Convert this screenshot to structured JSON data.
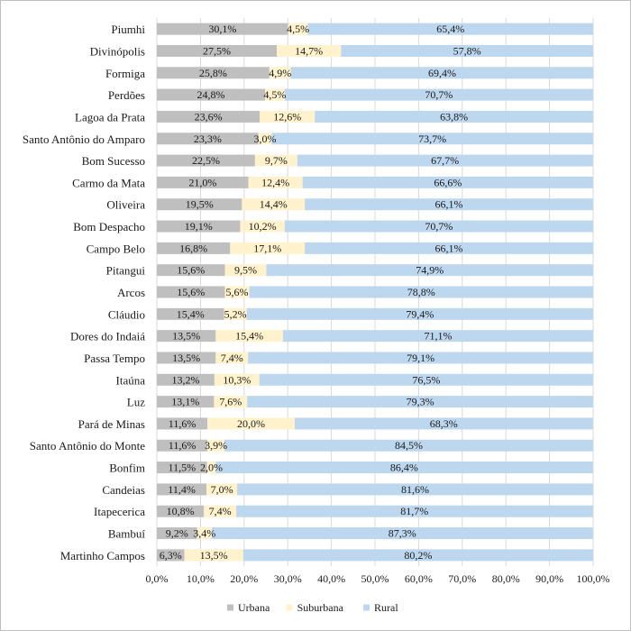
{
  "chart_data": {
    "type": "bar",
    "orientation": "horizontal",
    "stacked": true,
    "categories": [
      "Piumhi",
      "Divinópolis",
      "Formiga",
      "Perdões",
      "Lagoa da Prata",
      "Santo Antônio do Amparo",
      "Bom Sucesso",
      "Carmo da Mata",
      "Oliveira",
      "Bom Despacho",
      "Campo Belo",
      "Pitangui",
      "Arcos",
      "Cláudio",
      "Dores do Indaiá",
      "Passa Tempo",
      "Itaúna",
      "Luz",
      "Pará de Minas",
      "Santo Antônio do Monte",
      "Bonfim",
      "Candeias",
      "Itapecerica",
      "Bambuí",
      "Martinho Campos"
    ],
    "series": [
      {
        "name": "Urbana",
        "color": "#bfbfbf",
        "values": [
          30.1,
          27.5,
          25.8,
          24.8,
          23.6,
          23.3,
          22.5,
          21.0,
          19.5,
          19.1,
          16.8,
          15.6,
          15.6,
          15.4,
          13.5,
          13.5,
          13.2,
          13.1,
          11.6,
          11.6,
          11.5,
          11.4,
          10.8,
          9.2,
          6.3
        ],
        "labels": [
          "30,1%",
          "27,5%",
          "25,8%",
          "24,8%",
          "23,6%",
          "23,3%",
          "22,5%",
          "21,0%",
          "19,5%",
          "19,1%",
          "16,8%",
          "15,6%",
          "15,6%",
          "15,4%",
          "13,5%",
          "13,5%",
          "13,2%",
          "13,1%",
          "11,6%",
          "11,6%",
          "11,5%",
          "11,4%",
          "10,8%",
          "9,2%",
          "6,3%"
        ]
      },
      {
        "name": "Suburbana",
        "color": "#fff2cc",
        "values": [
          4.5,
          14.7,
          4.9,
          4.5,
          12.6,
          3.0,
          9.7,
          12.4,
          14.4,
          10.2,
          17.1,
          9.5,
          5.6,
          5.2,
          15.4,
          7.4,
          10.3,
          7.6,
          20.0,
          3.9,
          2.0,
          7.0,
          7.4,
          3.4,
          13.5
        ],
        "labels": [
          "4,5%",
          "14,7%",
          "4,9%",
          "4,5%",
          "12,6%",
          "3,0%",
          "9,7%",
          "12,4%",
          "14,4%",
          "10,2%",
          "17,1%",
          "9,5%",
          "5,6%",
          "5,2%",
          "15,4%",
          "7,4%",
          "10,3%",
          "7,6%",
          "20,0%",
          "3,9%",
          "2,0%",
          "7,0%",
          "7,4%",
          "3,4%",
          "13,5%"
        ]
      },
      {
        "name": "Rural",
        "color": "#bdd7ee",
        "values": [
          65.4,
          57.8,
          69.4,
          70.7,
          63.8,
          73.7,
          67.7,
          66.6,
          66.1,
          70.7,
          66.1,
          74.9,
          78.8,
          79.4,
          71.1,
          79.1,
          76.5,
          79.3,
          68.3,
          84.5,
          86.4,
          81.6,
          81.7,
          87.3,
          80.2
        ],
        "labels": [
          "65,4%",
          "57,8%",
          "69,4%",
          "70,7%",
          "63,8%",
          "73,7%",
          "67,7%",
          "66,6%",
          "66,1%",
          "70,7%",
          "66,1%",
          "74,9%",
          "78,8%",
          "79,4%",
          "71,1%",
          "79,1%",
          "76,5%",
          "79,3%",
          "68,3%",
          "84,5%",
          "86,4%",
          "81,6%",
          "81,7%",
          "87,3%",
          "80,2%"
        ]
      }
    ],
    "x_ticks": [
      0,
      10,
      20,
      30,
      40,
      50,
      60,
      70,
      80,
      90,
      100
    ],
    "x_tick_labels": [
      "0,0%",
      "10,0%",
      "20,0%",
      "30,0%",
      "40,0%",
      "50,0%",
      "60,0%",
      "70,0%",
      "80,0%",
      "90,0%",
      "100,0%"
    ],
    "xlim": [
      0,
      100
    ],
    "grid": "vertical",
    "legend": "bottom-center",
    "title": "",
    "xlabel": "",
    "ylabel": ""
  }
}
